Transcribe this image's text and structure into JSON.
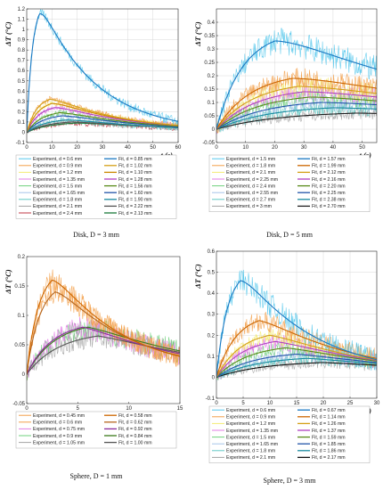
{
  "colors": [
    "#55c8ec",
    "#f3a04a",
    "#f4ec74",
    "#e27ee6",
    "#6fd17c",
    "#a6c4ea",
    "#63c9c4",
    "#a4a4a4",
    "#c23845",
    "#e8a0a0",
    "#2a8a8a"
  ],
  "chart_data": [
    {
      "type": "line",
      "caption": "Disk, D = 3 mm",
      "xlabel": "t (s)",
      "ylabel": "ΔT (°C)",
      "xlim": [
        0,
        60
      ],
      "ylim": [
        -0.1,
        1.2
      ],
      "xticks": [
        0,
        10,
        20,
        30,
        40,
        50,
        60
      ],
      "yticks": [
        -0.1,
        0,
        0.1,
        0.2,
        0.3,
        0.4,
        0.5,
        0.6,
        0.7,
        0.8,
        0.9,
        1,
        1.1,
        1.2
      ],
      "ytick_labels": [
        "-0.1",
        "0",
        "0.1",
        "0.2",
        "0.3",
        "0.4",
        "0.5",
        "0.6",
        "0.7",
        "0.8",
        "0.9",
        "1",
        "1.1",
        "1.2"
      ],
      "grid": true,
      "legend_exp": [
        "Experiment, d = 0.6 mm",
        "Experiment, d = 0.9 mm",
        "Experiment, d = 1.2 mm",
        "Experiment, d = 1.35 mm",
        "Experiment, d = 1.5 mm",
        "Experiment, d = 1.65 mm",
        "Experiment, d = 1.8 mm",
        "Experiment, d = 2.1 mm",
        "Experiment, d = 2.4 mm"
      ],
      "legend_fit": [
        "Fit, d = 0.85 mm",
        "Fit, d = 1.02 mm",
        "Fit, d = 1.10 mm",
        "Fit, d = 1.28 mm",
        "Fit, d = 1.56 mm",
        "Fit, d = 1.60 mm",
        "Fit, d = 1.90 mm",
        "Fit, d = 2.22 mm",
        "Fit, d = 2.13 mm"
      ],
      "exp_colors": [
        "#55c8ec",
        "#f3a04a",
        "#f4ec74",
        "#e27ee6",
        "#6fd17c",
        "#a6c4ea",
        "#63c9c4",
        "#a4a4a4",
        "#c23845"
      ],
      "fit_colors": [
        "#1a78c2",
        "#d4a017",
        "#cc8800",
        "#b040c0",
        "#5a8a1a",
        "#2255aa",
        "#1a8aa0",
        "#555555",
        "#1a7a3a"
      ],
      "series": [
        {
          "peak": 1.15,
          "tpeak": 5,
          "tau": 22,
          "noise": 0.05
        },
        {
          "peak": 0.32,
          "tpeak": 9,
          "tau": 30,
          "noise": 0.03
        },
        {
          "peak": 0.28,
          "tpeak": 10,
          "tau": 32,
          "noise": 0.03
        },
        {
          "peak": 0.24,
          "tpeak": 11,
          "tau": 34,
          "noise": 0.03
        },
        {
          "peak": 0.19,
          "tpeak": 13,
          "tau": 36,
          "noise": 0.03
        },
        {
          "peak": 0.16,
          "tpeak": 14,
          "tau": 38,
          "noise": 0.03
        },
        {
          "peak": 0.12,
          "tpeak": 16,
          "tau": 40,
          "noise": 0.03
        },
        {
          "peak": 0.1,
          "tpeak": 18,
          "tau": 45,
          "noise": 0.03
        },
        {
          "peak": 0.09,
          "tpeak": 20,
          "tau": 50,
          "noise": 0.03
        }
      ]
    },
    {
      "type": "line",
      "caption": "Disk, D = 5 mm",
      "xlabel": "t (s)",
      "ylabel": "ΔT (°C)",
      "xlim": [
        0,
        55
      ],
      "ylim": [
        -0.05,
        0.45
      ],
      "xticks": [
        0,
        10,
        20,
        30,
        40,
        50
      ],
      "yticks": [
        -0.05,
        0,
        0.05,
        0.1,
        0.15,
        0.2,
        0.25,
        0.3,
        0.35,
        0.4
      ],
      "ytick_labels": [
        "-0.05",
        "0",
        "0.05",
        "0.1",
        "0.15",
        "0.2",
        "0.25",
        "0.3",
        "0.35",
        "0.4"
      ],
      "grid": true,
      "legend_exp": [
        "Experiment, d = 1.5 mm",
        "Experiment, d = 1.8 mm",
        "Experiment, d = 2.1 mm",
        "Experiment, d = 2.25 mm",
        "Experiment, d = 2.4 mm",
        "Experiment, d = 2.55 mm",
        "Experiment, d = 2.7 mm",
        "Experiment, d = 3 mm"
      ],
      "legend_fit": [
        "Fit, d = 1.57 mm",
        "Fit, d = 1.99 mm",
        "Fit, d = 2.12 mm",
        "Fit, d = 2.16 mm",
        "Fit, d = 2.20 mm",
        "Fit, d = 2.25 mm",
        "Fit, d = 2.38 mm",
        "Fit, d = 2.70 mm"
      ],
      "exp_colors": [
        "#55c8ec",
        "#f3a04a",
        "#f4ec74",
        "#e27ee6",
        "#6fd17c",
        "#a6c4ea",
        "#63c9c4",
        "#a4a4a4"
      ],
      "fit_colors": [
        "#1a78c2",
        "#cc6600",
        "#d4a017",
        "#b040c0",
        "#5a8a1a",
        "#2255aa",
        "#1a8aa0",
        "#222222"
      ],
      "series": [
        {
          "peak": 0.33,
          "tpeak": 20,
          "tau": 70,
          "noise": 0.05
        },
        {
          "peak": 0.19,
          "tpeak": 26,
          "tau": 90,
          "noise": 0.04
        },
        {
          "peak": 0.16,
          "tpeak": 28,
          "tau": 95,
          "noise": 0.04
        },
        {
          "peak": 0.14,
          "tpeak": 30,
          "tau": 100,
          "noise": 0.035
        },
        {
          "peak": 0.12,
          "tpeak": 32,
          "tau": 105,
          "noise": 0.03
        },
        {
          "peak": 0.1,
          "tpeak": 36,
          "tau": 110,
          "noise": 0.03
        },
        {
          "peak": 0.08,
          "tpeak": 40,
          "tau": 120,
          "noise": 0.03
        },
        {
          "peak": 0.06,
          "tpeak": 48,
          "tau": 130,
          "noise": 0.025
        }
      ]
    },
    {
      "type": "line",
      "caption": "Sphere, D = 1 mm",
      "xlabel": "t (s)",
      "ylabel": "ΔT (°C)",
      "xlim": [
        0,
        15
      ],
      "ylim": [
        -0.05,
        0.2
      ],
      "xticks": [
        0,
        5,
        10,
        15
      ],
      "yticks": [
        -0.05,
        0,
        0.05,
        0.1,
        0.15,
        0.2
      ],
      "ytick_labels": [
        "-0.05",
        "0",
        "0.05",
        "0.1",
        "0.15",
        "0.2"
      ],
      "grid": false,
      "legend_exp": [
        "Experiment, d = 0.45 mm",
        "Experiment, d = 0.6 mm",
        "Experiment, d = 0.75 mm",
        "Experiment, d = 0.9 mm",
        "Experiment, d = 1.05 mm"
      ],
      "legend_fit": [
        "Fit, d = 0.58 mm",
        "Fit, d = 0.62 mm",
        "Fit, d = 0.92 mm",
        "Fit, d = 0.84 mm",
        "Fit, d = 1.00 mm"
      ],
      "exp_colors": [
        "#f3a04a",
        "#f3a04a",
        "#e27ee6",
        "#6fd17c",
        "#a4a4a4"
      ],
      "fit_colors": [
        "#cc6600",
        "#b5651d",
        "#8a2a9a",
        "#3a7a1a",
        "#555555"
      ],
      "series": [
        {
          "peak": 0.16,
          "tpeak": 2.5,
          "tau": 7,
          "noise": 0.02
        },
        {
          "peak": 0.14,
          "tpeak": 2.8,
          "tau": 7.5,
          "noise": 0.02
        },
        {
          "peak": 0.08,
          "tpeak": 5.5,
          "tau": 10,
          "noise": 0.02
        },
        {
          "peak": 0.08,
          "tpeak": 6,
          "tau": 11,
          "noise": 0.02
        },
        {
          "peak": 0.065,
          "tpeak": 7,
          "tau": 12,
          "noise": 0.02
        }
      ]
    },
    {
      "type": "line",
      "caption": "Sphere, D = 3 mm",
      "xlabel": "t (s)",
      "ylabel": "ΔT (°C)",
      "xlim": [
        0,
        30
      ],
      "ylim": [
        -0.1,
        0.6
      ],
      "xticks": [
        0,
        5,
        10,
        15,
        20,
        25,
        30
      ],
      "yticks": [
        -0.1,
        0,
        0.1,
        0.2,
        0.3,
        0.4,
        0.5,
        0.6
      ],
      "ytick_labels": [
        "-0.1",
        "0",
        "0.1",
        "0.2",
        "0.3",
        "0.4",
        "0.5",
        "0.6"
      ],
      "grid": true,
      "legend_exp": [
        "Experiment, d = 0.6 mm",
        "Experiment, d = 0.9 mm",
        "Experiment, d = 1.2 mm",
        "Experiment, d = 1.35 mm",
        "Experiment, d = 1.5 mm",
        "Experiment, d = 1.65 mm",
        "Experiment, d = 1.8 mm",
        "Experiment, d = 2.1 mm"
      ],
      "legend_fit": [
        "Fit, d = 0.67 mm",
        "Fit, d = 1.14 mm",
        "Fit, d = 1.26 mm",
        "Fit, d = 1.37 mm",
        "Fit, d = 1.59 mm",
        "Fit, d = 1.85 mm",
        "Fit, d = 1.86 mm",
        "Fit, d = 2.17 mm"
      ],
      "exp_colors": [
        "#55c8ec",
        "#f3a04a",
        "#f4ec74",
        "#e27ee6",
        "#6fd17c",
        "#a6c4ea",
        "#63c9c4",
        "#a4a4a4"
      ],
      "fit_colors": [
        "#1a78c2",
        "#cc6600",
        "#d4a017",
        "#b040c0",
        "#5a8a1a",
        "#2255aa",
        "#1a8aa0",
        "#111111"
      ],
      "series": [
        {
          "peak": 0.46,
          "tpeak": 4.5,
          "tau": 14,
          "noise": 0.06
        },
        {
          "peak": 0.27,
          "tpeak": 8,
          "tau": 18,
          "noise": 0.05
        },
        {
          "peak": 0.2,
          "tpeak": 10,
          "tau": 20,
          "noise": 0.04
        },
        {
          "peak": 0.17,
          "tpeak": 11,
          "tau": 22,
          "noise": 0.04
        },
        {
          "peak": 0.14,
          "tpeak": 13,
          "tau": 24,
          "noise": 0.035
        },
        {
          "peak": 0.11,
          "tpeak": 15,
          "tau": 27,
          "noise": 0.035
        },
        {
          "peak": 0.09,
          "tpeak": 17,
          "tau": 30,
          "noise": 0.03
        },
        {
          "peak": 0.07,
          "tpeak": 20,
          "tau": 35,
          "noise": 0.03
        }
      ]
    }
  ]
}
